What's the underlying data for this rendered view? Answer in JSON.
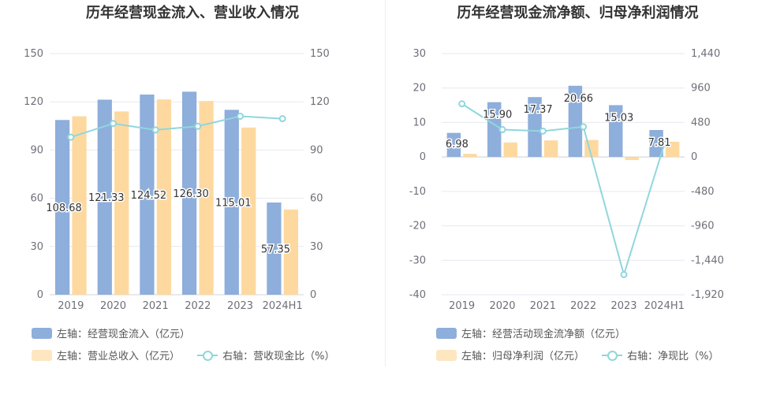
{
  "charts": [
    {
      "title": "历年经营现金流入、营业收入情况",
      "legend": {
        "bar1": "左轴：经营现金流入（亿元）",
        "bar2": "左轴：营业总收入（亿元）",
        "line": "右轴：营收现金比（%）"
      }
    },
    {
      "title": "历年经营现金流净额、归母净利润情况",
      "legend": {
        "bar1": "左轴：经营活动现金流净额（亿元）",
        "bar2": "左轴：归母净利润（亿元）",
        "line": "右轴：净现比（%）"
      }
    }
  ],
  "colors": {
    "bar1": "#8eaedb",
    "bar2": "#fdd9a0",
    "line": "#8fd7dc",
    "grid": "#e6e9f0",
    "axis_text": "#6e7079"
  },
  "chart_data": [
    {
      "type": "bar",
      "title": "历年经营现金流入、营业收入情况",
      "categories": [
        "2019",
        "2020",
        "2021",
        "2022",
        "2023",
        "2024H1"
      ],
      "series": [
        {
          "name": "左轴：经营现金流入（亿元）",
          "axis": "left",
          "values": [
            108.68,
            121.33,
            124.52,
            126.3,
            115.01,
            57.35
          ],
          "labels": [
            "108.68",
            "121.33",
            "124.52",
            "126.30",
            "115.01",
            "57.35"
          ]
        },
        {
          "name": "左轴：营业总收入（亿元）",
          "axis": "left",
          "values": [
            111,
            114,
            121.5,
            120.5,
            104,
            53
          ]
        },
        {
          "name": "右轴：营收现金比（%）",
          "axis": "right",
          "type": "line",
          "values": [
            98,
            106.5,
            102.5,
            104.8,
            111,
            109.5
          ]
        }
      ],
      "y_left": {
        "min": 0,
        "max": 150,
        "ticks": [
          "0",
          "30",
          "60",
          "90",
          "120",
          "150"
        ]
      },
      "y_right": {
        "min": 0,
        "max": 150,
        "ticks": [
          "0",
          "30",
          "60",
          "90",
          "120",
          "150"
        ]
      },
      "grid": true,
      "legend_position": "bottom"
    },
    {
      "type": "bar",
      "title": "历年经营现金流净额、归母净利润情况",
      "categories": [
        "2019",
        "2020",
        "2021",
        "2022",
        "2023",
        "2024H1"
      ],
      "series": [
        {
          "name": "左轴：经营活动现金流净额（亿元）",
          "axis": "left",
          "values": [
            6.98,
            15.9,
            17.37,
            20.66,
            15.03,
            7.81
          ],
          "labels": [
            "6.98",
            "15.90",
            "17.37",
            "20.66",
            "15.03",
            "7.81"
          ]
        },
        {
          "name": "左轴：归母净利润（亿元）",
          "axis": "left",
          "values": [
            0.9,
            4.2,
            4.8,
            4.9,
            -0.9,
            4.4
          ]
        },
        {
          "name": "右轴：净现比（%）",
          "axis": "right",
          "type": "line",
          "values": [
            740,
            380,
            360,
            420,
            -1640,
            180
          ]
        }
      ],
      "y_left": {
        "min": -40,
        "max": 30,
        "ticks": [
          "-40",
          "-30",
          "-20",
          "-10",
          "0",
          "10",
          "20",
          "30"
        ]
      },
      "y_right": {
        "min": -1920,
        "max": 1440,
        "ticks": [
          "-1,920",
          "-1,440",
          "-960",
          "-480",
          "0",
          "480",
          "960",
          "1,440"
        ]
      },
      "grid": true,
      "legend_position": "bottom"
    }
  ]
}
